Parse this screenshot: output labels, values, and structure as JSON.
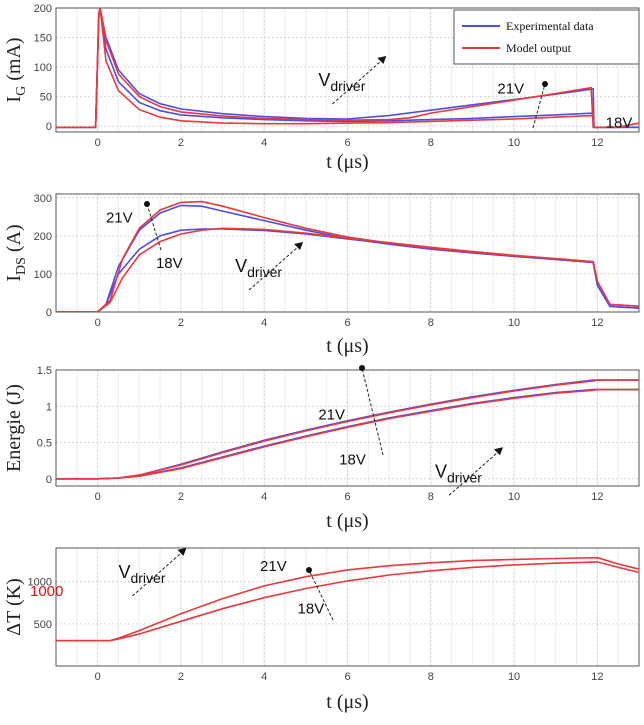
{
  "colors": {
    "experimental": "#4d4de8",
    "model": "#e8393c",
    "grid": "#d6d6d6",
    "overlay_text": "#e01010"
  },
  "legend": {
    "items": [
      {
        "label": "Experimental data",
        "color": "#4d4de8"
      },
      {
        "label": "Model output",
        "color": "#e8393c"
      }
    ]
  },
  "overlay_label": "1000",
  "chart_data": [
    {
      "type": "line",
      "xlabel": "t (μs)",
      "ylabel": "I_G (mA)",
      "ylabel_main": "I",
      "ylabel_sub": "G",
      "ylabel_rest": " (mA)",
      "xlim": [
        -1,
        13
      ],
      "ylim": [
        -10,
        200
      ],
      "xticks": [
        0,
        2,
        4,
        6,
        8,
        10,
        12
      ],
      "yticks": [
        0,
        50,
        100,
        150,
        200
      ],
      "grid": true,
      "legend": "top-right",
      "series": [
        {
          "kind": "experimental",
          "x": [
            -1,
            -0.05,
            0.03,
            0.06,
            0.2,
            0.5,
            1,
            1.5,
            2,
            3,
            4,
            5,
            6,
            7,
            8,
            9,
            10,
            11,
            11.9,
            11.92,
            12.5,
            13
          ],
          "y": [
            -2,
            -2,
            190,
            200,
            150,
            95,
            55,
            38,
            29,
            21,
            16,
            13,
            12,
            18,
            27,
            36,
            45,
            54,
            63,
            -2,
            -2,
            -2
          ]
        },
        {
          "kind": "experimental",
          "x": [
            -1,
            -0.05,
            0.03,
            0.06,
            0.2,
            0.5,
            1,
            1.5,
            2,
            3,
            4,
            5,
            6,
            7,
            8,
            9,
            10,
            11,
            11.9,
            11.92,
            12.5,
            13
          ],
          "y": [
            -2,
            -2,
            190,
            200,
            130,
            75,
            40,
            26,
            19,
            14,
            11,
            9,
            8,
            9,
            11,
            13,
            16,
            19,
            22,
            -2,
            -2,
            -2
          ]
        },
        {
          "kind": "model",
          "x": [
            -1,
            -0.05,
            0.03,
            0.06,
            0.2,
            0.5,
            1,
            1.5,
            2,
            3,
            4,
            5,
            6,
            7,
            7.5,
            8,
            9,
            10,
            11,
            11.85,
            11.9,
            12.5,
            13
          ],
          "y": [
            -2,
            -2,
            190,
            200,
            145,
            88,
            50,
            33,
            24,
            17,
            13,
            11,
            10,
            11,
            14,
            22,
            33,
            44,
            55,
            65,
            -2,
            -2,
            5
          ]
        },
        {
          "kind": "model",
          "x": [
            -1,
            -0.05,
            0.03,
            0.06,
            0.2,
            0.5,
            1,
            1.5,
            2,
            3,
            4,
            5,
            6,
            7,
            8,
            9,
            10,
            11,
            11.9,
            11.92,
            12.5,
            13
          ],
          "y": [
            -2,
            -2,
            190,
            200,
            110,
            60,
            28,
            15,
            9,
            5,
            4,
            4,
            5,
            6,
            8,
            10,
            12,
            15,
            18,
            -2,
            -2,
            5
          ]
        }
      ],
      "annotations": [
        {
          "text": "21V",
          "x": 9.6,
          "y": 55
        },
        {
          "text": "18V",
          "x": 12.2,
          "y": -2
        }
      ],
      "vdriver_label": {
        "main": "V",
        "sub": "driver",
        "x": 5.3,
        "y": 68
      }
    },
    {
      "type": "line",
      "xlabel": "t (μs)",
      "ylabel": "I_DS (A)",
      "ylabel_main": "I",
      "ylabel_sub": "DS",
      "ylabel_rest": " (A)",
      "xlim": [
        -1,
        13
      ],
      "ylim": [
        0,
        310
      ],
      "xticks": [
        0,
        2,
        4,
        6,
        8,
        10,
        12
      ],
      "yticks": [
        0,
        100,
        200,
        300
      ],
      "grid": true,
      "series": [
        {
          "kind": "experimental",
          "x": [
            -1,
            0,
            0.2,
            0.5,
            1,
            1.5,
            2,
            2.5,
            3,
            4,
            5,
            6,
            7,
            8,
            9,
            10,
            11,
            11.9,
            12,
            12.3,
            13
          ],
          "y": [
            0,
            0,
            20,
            120,
            215,
            260,
            280,
            278,
            265,
            240,
            215,
            193,
            178,
            165,
            155,
            146,
            138,
            130,
            70,
            15,
            10
          ]
        },
        {
          "kind": "experimental",
          "x": [
            -1,
            0,
            0.2,
            0.5,
            1,
            1.5,
            2,
            2.5,
            3,
            4,
            5,
            6,
            7,
            8,
            9,
            10,
            11,
            11.9,
            12,
            12.3,
            13
          ],
          "y": [
            0,
            0,
            20,
            100,
            165,
            200,
            215,
            218,
            218,
            214,
            205,
            192,
            180,
            168,
            157,
            147,
            138,
            130,
            70,
            15,
            10
          ]
        },
        {
          "kind": "model",
          "x": [
            -1,
            0,
            0.3,
            0.6,
            1,
            1.5,
            2,
            2.5,
            3,
            4,
            5,
            6,
            7,
            8,
            9,
            10,
            11,
            11.9,
            12,
            12.3,
            13
          ],
          "y": [
            0,
            0,
            30,
            140,
            220,
            268,
            288,
            290,
            278,
            248,
            220,
            197,
            181,
            168,
            157,
            148,
            140,
            132,
            80,
            20,
            15
          ]
        },
        {
          "kind": "model",
          "x": [
            -1,
            0,
            0.3,
            0.6,
            1,
            1.5,
            2,
            2.5,
            3,
            4,
            5,
            6,
            7,
            8,
            9,
            10,
            11,
            11.9,
            12,
            12.3,
            13
          ],
          "y": [
            0,
            0,
            25,
            90,
            150,
            185,
            205,
            215,
            220,
            217,
            207,
            194,
            182,
            170,
            159,
            149,
            140,
            132,
            80,
            20,
            15
          ]
        }
      ],
      "annotations": [
        {
          "text": "21V",
          "x": 0.2,
          "y": 235
        },
        {
          "text": "18V",
          "x": 1.4,
          "y": 115
        }
      ],
      "vdriver_label": {
        "main": "V",
        "sub": "driver",
        "x": 3.3,
        "y": 105
      }
    },
    {
      "type": "line",
      "xlabel": "t (μs)",
      "ylabel": "Energie (J)",
      "xlim": [
        -1,
        13
      ],
      "ylim": [
        -0.1,
        1.5
      ],
      "xticks": [
        0,
        2,
        4,
        6,
        8,
        10,
        12
      ],
      "yticks": [
        0,
        0.5,
        1,
        1.5
      ],
      "grid": true,
      "series": [
        {
          "kind": "experimental",
          "x": [
            -1,
            0,
            0.5,
            1,
            2,
            3,
            4,
            5,
            6,
            7,
            8,
            9,
            10,
            11,
            11.9,
            12,
            13
          ],
          "y": [
            0,
            0,
            0.01,
            0.05,
            0.2,
            0.37,
            0.53,
            0.67,
            0.8,
            0.92,
            1.03,
            1.13,
            1.22,
            1.3,
            1.36,
            1.36,
            1.36
          ]
        },
        {
          "kind": "experimental",
          "x": [
            -1,
            0,
            0.5,
            1,
            2,
            3,
            4,
            5,
            6,
            7,
            8,
            9,
            10,
            11,
            11.9,
            12,
            13
          ],
          "y": [
            0,
            0,
            0.01,
            0.04,
            0.15,
            0.3,
            0.45,
            0.59,
            0.72,
            0.84,
            0.94,
            1.04,
            1.12,
            1.19,
            1.23,
            1.23,
            1.23
          ]
        },
        {
          "kind": "model",
          "x": [
            -1,
            0,
            0.5,
            1,
            2,
            3,
            4,
            5,
            6,
            7,
            8,
            9,
            10,
            11,
            11.9,
            12,
            13
          ],
          "y": [
            0,
            0,
            0.01,
            0.05,
            0.19,
            0.36,
            0.52,
            0.66,
            0.79,
            0.91,
            1.02,
            1.12,
            1.21,
            1.29,
            1.35,
            1.36,
            1.36
          ]
        },
        {
          "kind": "model",
          "x": [
            -1,
            0,
            0.5,
            1,
            2,
            3,
            4,
            5,
            6,
            7,
            8,
            9,
            10,
            11,
            11.9,
            12,
            13
          ],
          "y": [
            0,
            0,
            0.01,
            0.035,
            0.14,
            0.29,
            0.44,
            0.58,
            0.71,
            0.83,
            0.93,
            1.03,
            1.11,
            1.18,
            1.22,
            1.23,
            1.23
          ]
        }
      ],
      "annotations": [
        {
          "text": "21V",
          "x": 5.3,
          "y": 0.82
        },
        {
          "text": "18V",
          "x": 5.8,
          "y": 0.2
        }
      ],
      "vdriver_label": {
        "main": "V",
        "sub": "driver",
        "x": 8.1,
        "y": 0.02
      }
    },
    {
      "type": "line",
      "xlabel": "t (μs)",
      "ylabel": "ΔT (K)",
      "xlim": [
        -1,
        13
      ],
      "ylim": [
        0,
        1400
      ],
      "xticks": [
        0,
        2,
        4,
        6,
        8,
        10,
        12
      ],
      "yticks": [
        500,
        1000
      ],
      "grid": true,
      "series": [
        {
          "kind": "model",
          "x": [
            -1,
            0,
            0.3,
            0.5,
            1,
            2,
            3,
            4,
            5,
            6,
            7,
            8,
            9,
            10,
            11,
            12,
            12.5,
            13
          ],
          "y": [
            300,
            300,
            300,
            330,
            420,
            620,
            800,
            950,
            1060,
            1140,
            1190,
            1225,
            1250,
            1265,
            1275,
            1285,
            1210,
            1150
          ]
        },
        {
          "kind": "model",
          "x": [
            -1,
            0,
            0.3,
            0.5,
            1,
            2,
            3,
            4,
            5,
            6,
            7,
            8,
            9,
            10,
            11,
            12,
            12.5,
            13
          ],
          "y": [
            300,
            300,
            300,
            320,
            380,
            530,
            680,
            810,
            920,
            1010,
            1080,
            1130,
            1170,
            1200,
            1220,
            1235,
            1170,
            1110
          ]
        }
      ],
      "annotations": [
        {
          "text": "21V",
          "x": 3.9,
          "y": 1125
        },
        {
          "text": "18V",
          "x": 4.8,
          "y": 625
        }
      ],
      "vdriver_label": {
        "main": "V",
        "sub": "driver",
        "x": 0.5,
        "y": 1045
      }
    }
  ]
}
